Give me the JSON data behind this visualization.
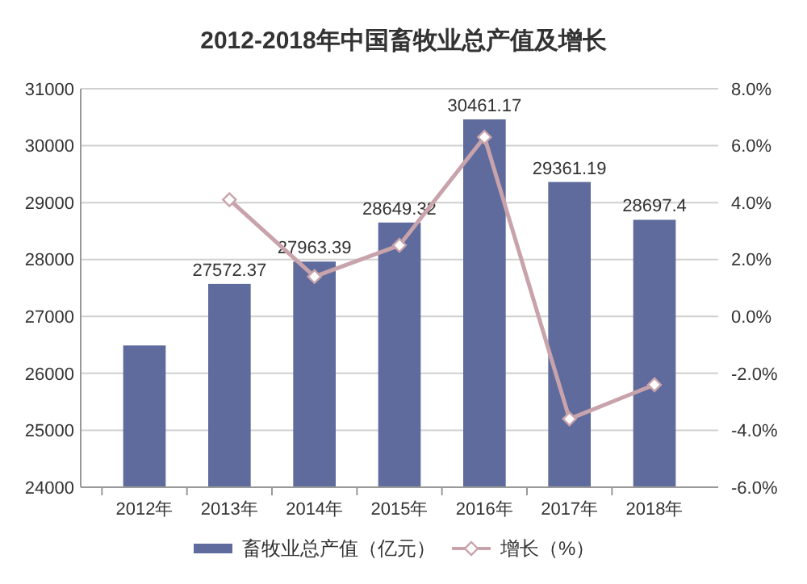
{
  "chart_data": {
    "type": "bar",
    "title": "2012-2018年中国畜牧业总产值及增长",
    "categories": [
      "2012年",
      "2013年",
      "2014年",
      "2015年",
      "2016年",
      "2017年",
      "2018年"
    ],
    "series": [
      {
        "name": "畜牧业总产值（亿元）",
        "color": "#5e6b9c",
        "values": [
          26490,
          27572.37,
          27963.39,
          28649.32,
          30461.17,
          29361.19,
          28697.4
        ],
        "value_labels": [
          null,
          "27572.37",
          "27963.39",
          "28649.32",
          "30461.17",
          "29361.19",
          "28697.4"
        ]
      },
      {
        "name": "增长（%）",
        "type": "line",
        "axis": "y2",
        "color": "#c9a3ab",
        "marker": "diamond",
        "values": [
          null,
          4.1,
          1.4,
          2.5,
          6.3,
          -3.6,
          -2.4
        ]
      }
    ],
    "ylim": [
      24000,
      31000
    ],
    "yticks": [
      24000,
      25000,
      26000,
      27000,
      28000,
      29000,
      30000,
      31000
    ],
    "y2lim": [
      -6,
      8
    ],
    "y2ticks": [
      {
        "value": -6,
        "label": "-6.0%"
      },
      {
        "value": -4,
        "label": "-4.0%"
      },
      {
        "value": -2,
        "label": "-2.0%"
      },
      {
        "value": 0,
        "label": "0.0%"
      },
      {
        "value": 2,
        "label": "2.0%"
      },
      {
        "value": 4,
        "label": "4.0%"
      },
      {
        "value": 6,
        "label": "6.0%"
      },
      {
        "value": 8,
        "label": "8.0%"
      }
    ],
    "grid": "y",
    "legend": "bottom"
  }
}
